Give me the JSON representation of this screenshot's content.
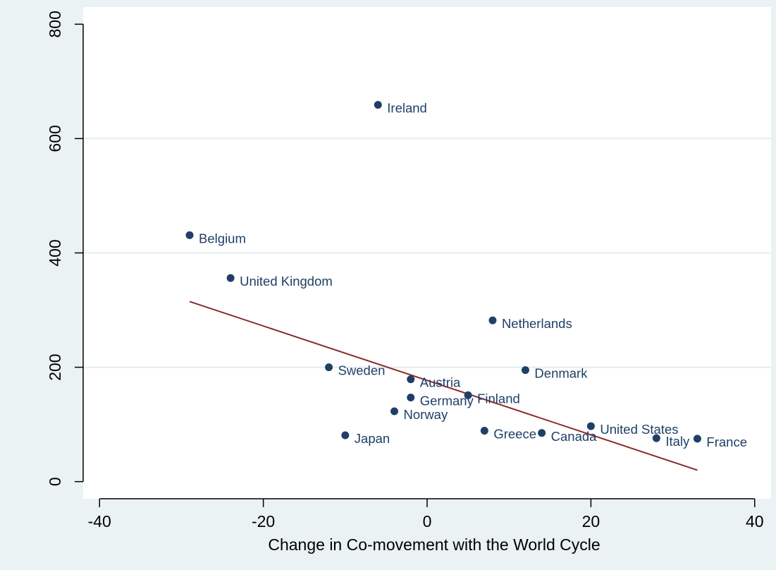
{
  "chart_data": {
    "type": "scatter",
    "title": "",
    "xlabel": "Change in Co-movement with the World Cycle",
    "ylabel": "",
    "xlim": [
      -42,
      42
    ],
    "ylim": [
      -30,
      830
    ],
    "x_ticks": [
      -40,
      -20,
      0,
      20,
      40
    ],
    "y_ticks": [
      0,
      200,
      400,
      600,
      800
    ],
    "grid": "horizontal",
    "legend": "none",
    "marker_color": "#1f3f66",
    "fit_line_color": "#8b2a2a",
    "plot_background": "#ffffff",
    "figure_background": "#eaf2f3",
    "points": [
      {
        "label": "Ireland",
        "x": -6,
        "y": 659
      },
      {
        "label": "Belgium",
        "x": -29,
        "y": 431
      },
      {
        "label": "United Kingdom",
        "x": -24,
        "y": 356
      },
      {
        "label": "Netherlands",
        "x": 8,
        "y": 282
      },
      {
        "label": "Sweden",
        "x": -12,
        "y": 200
      },
      {
        "label": "Denmark",
        "x": 12,
        "y": 195
      },
      {
        "label": "Austria",
        "x": -2,
        "y": 179
      },
      {
        "label": "Germany",
        "x": -2,
        "y": 147
      },
      {
        "label": "Finland",
        "x": 5,
        "y": 151
      },
      {
        "label": "Norway",
        "x": -4,
        "y": 123
      },
      {
        "label": "Japan",
        "x": -10,
        "y": 81
      },
      {
        "label": "Greece",
        "x": 7,
        "y": 89
      },
      {
        "label": "Canada",
        "x": 14,
        "y": 85
      },
      {
        "label": "United States",
        "x": 20,
        "y": 97
      },
      {
        "label": "Italy",
        "x": 28,
        "y": 76
      },
      {
        "label": "France",
        "x": 33,
        "y": 75
      }
    ],
    "fit_line": {
      "x": [
        -29,
        33
      ],
      "y": [
        315,
        20
      ]
    }
  }
}
